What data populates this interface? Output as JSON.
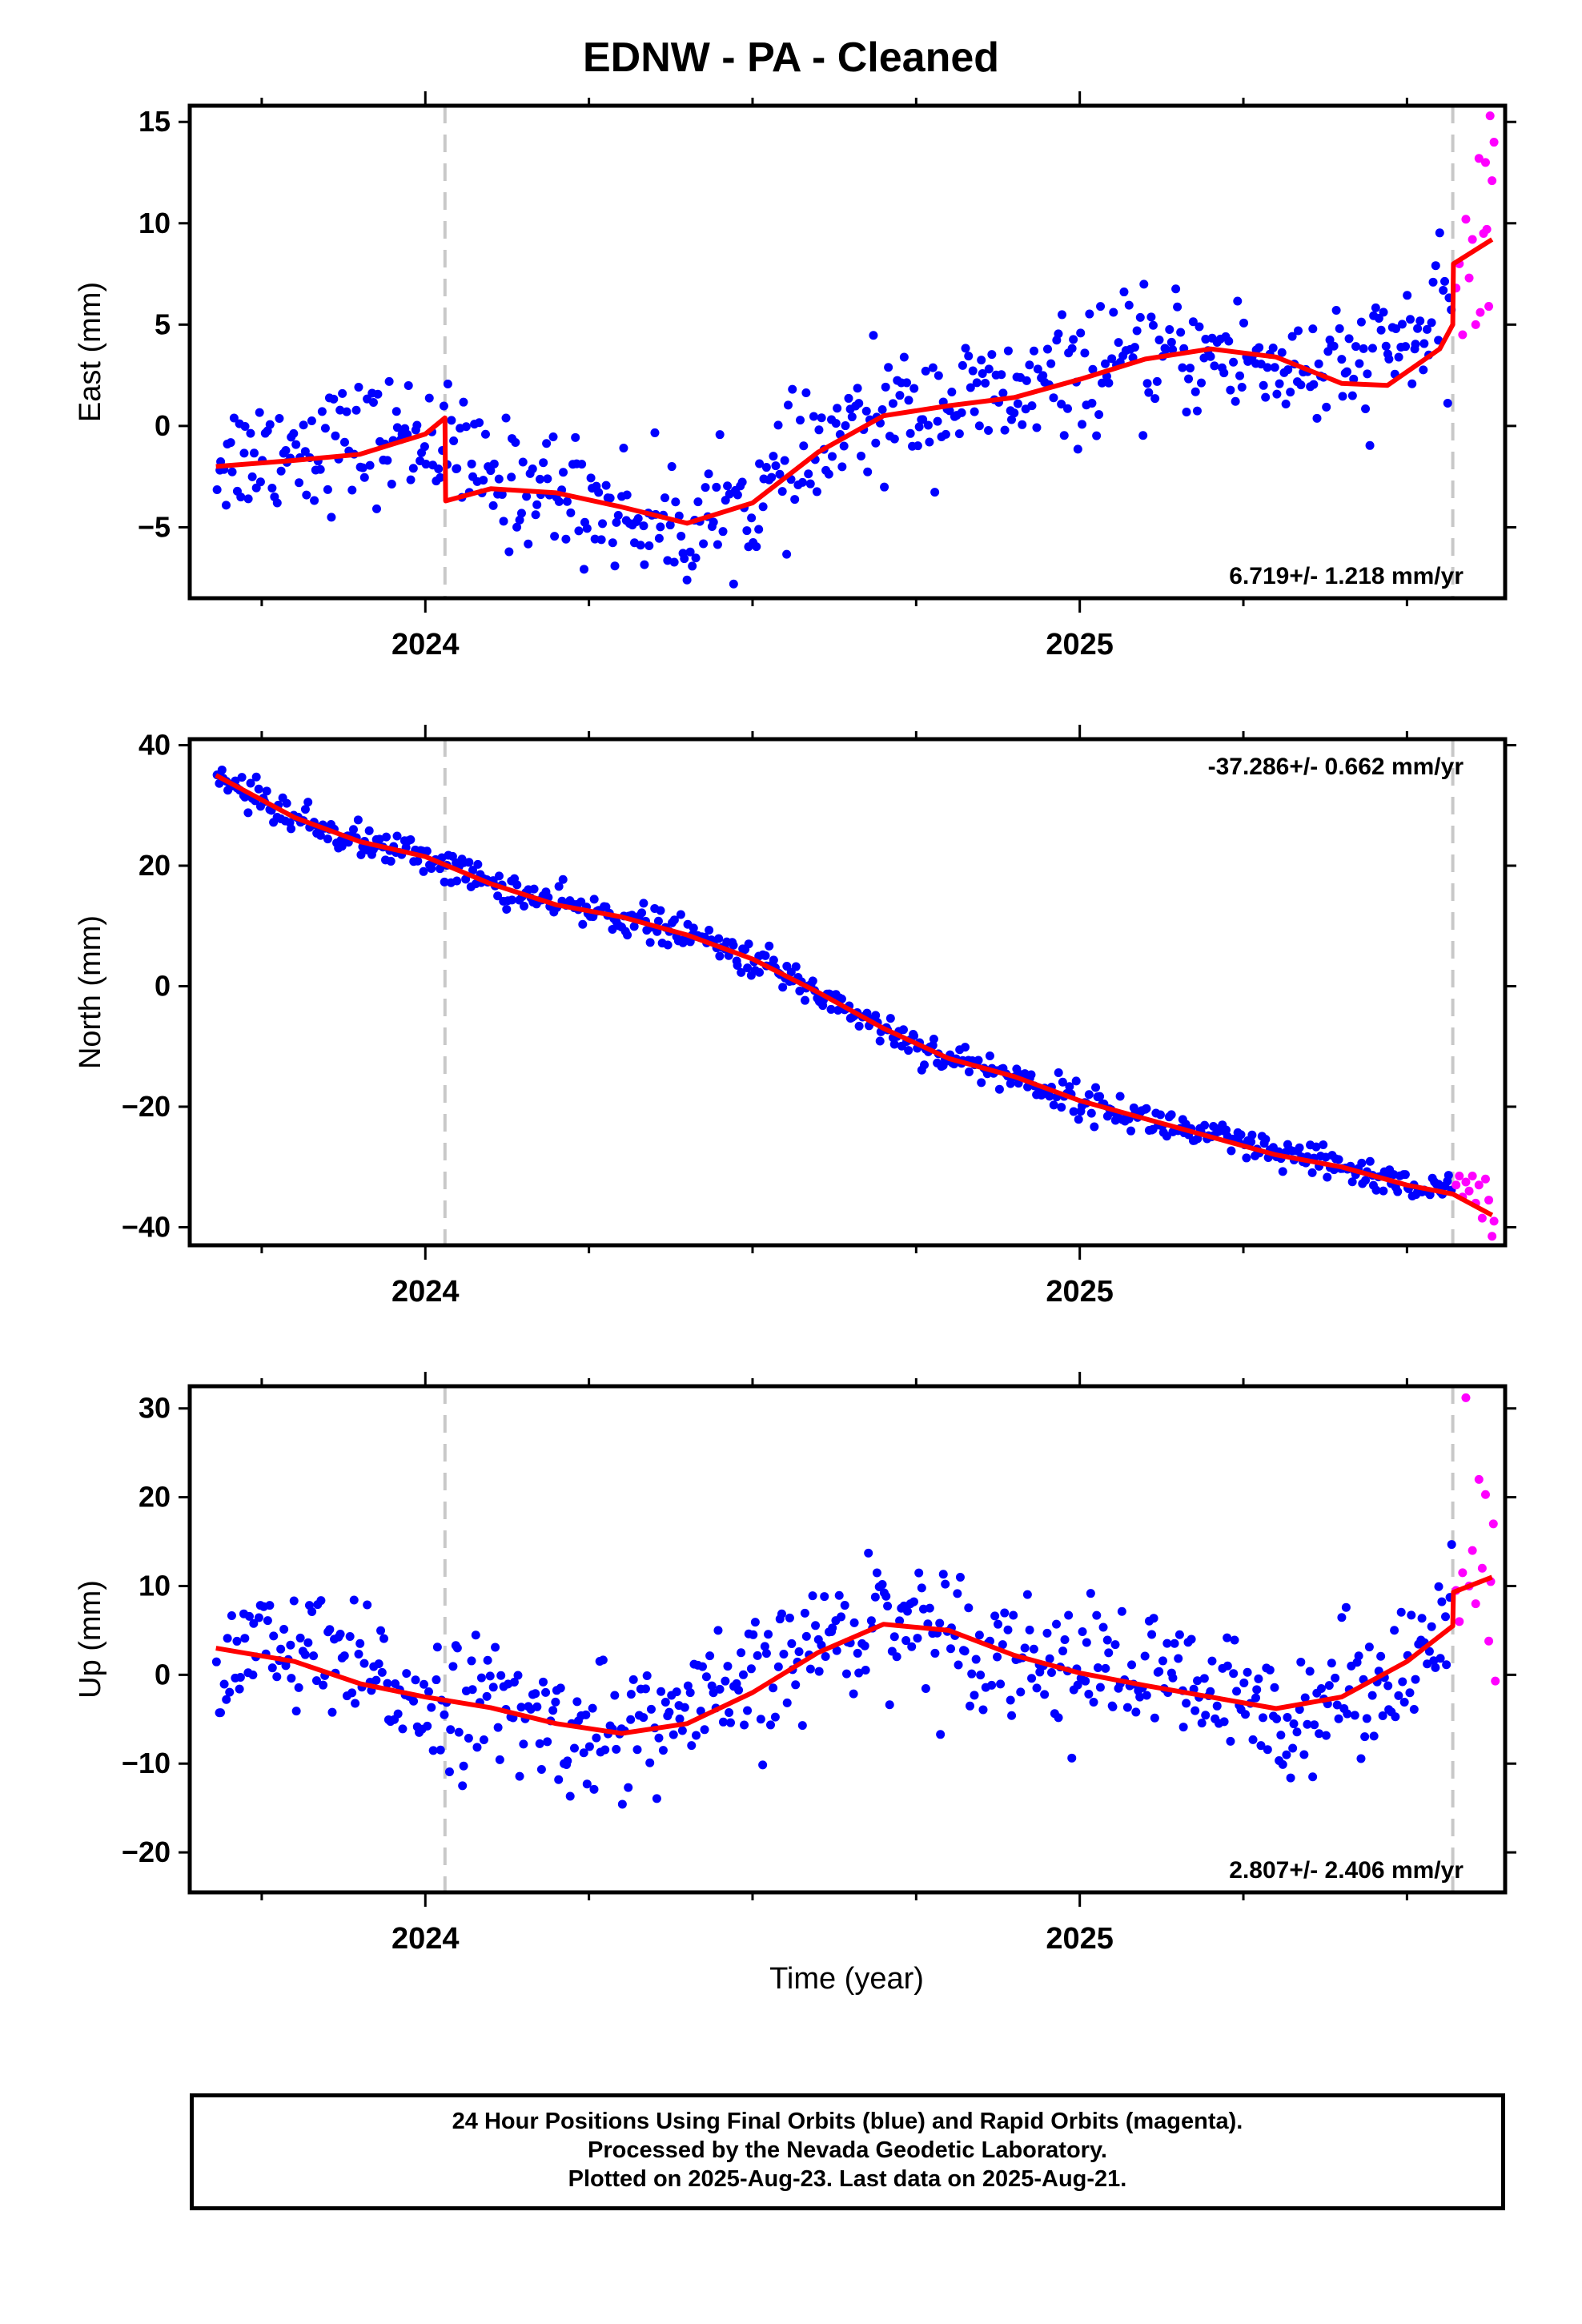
{
  "title": "EDNW  - PA - Cleaned",
  "xlabel": "Time (year)",
  "footer": {
    "line1": "24 Hour Positions Using Final Orbits (blue) and Rapid Orbits (magenta).",
    "line2": "Processed by the Nevada Geodetic Laboratory.",
    "line3": "Plotted on 2025-Aug-23. Last data on 2025-Aug-21."
  },
  "colors": {
    "final": "#0000ff",
    "rapid": "#ff00ff",
    "model": "#ff0000",
    "equipment_change": "#c8c8c8"
  },
  "chart_data": [
    {
      "type": "scatter",
      "ylabel": "East (mm)",
      "rate_label": "6.719+/- 1.218 mm/yr",
      "xlim": [
        2023.64,
        2025.65
      ],
      "ylim": [
        -8.5,
        15.8
      ],
      "yticks": [
        -5,
        0,
        5,
        10,
        15
      ],
      "xticks": [
        2024,
        2025
      ],
      "equipment_changes": [
        2024.03,
        2025.57
      ],
      "model_trend": [
        [
          2023.68,
          -2.0
        ],
        [
          2023.8,
          -1.7
        ],
        [
          2023.9,
          -1.4
        ],
        [
          2024.0,
          -0.4
        ],
        [
          2024.03,
          0.4
        ],
        [
          2024.031,
          -3.7
        ],
        [
          2024.1,
          -3.1
        ],
        [
          2024.2,
          -3.3
        ],
        [
          2024.3,
          -4.0
        ],
        [
          2024.4,
          -4.8
        ],
        [
          2024.5,
          -3.8
        ],
        [
          2024.6,
          -1.3
        ],
        [
          2024.7,
          0.5
        ],
        [
          2024.8,
          1.0
        ],
        [
          2024.9,
          1.4
        ],
        [
          2025.0,
          2.3
        ],
        [
          2025.1,
          3.3
        ],
        [
          2025.2,
          3.8
        ],
        [
          2025.3,
          3.4
        ],
        [
          2025.4,
          2.1
        ],
        [
          2025.47,
          2.0
        ],
        [
          2025.55,
          3.8
        ],
        [
          2025.57,
          5.0
        ],
        [
          2025.571,
          8.0
        ],
        [
          2025.63,
          9.2
        ]
      ],
      "final_anchor": [
        [
          2023.68,
          -1.6
        ],
        [
          2023.8,
          -1.0
        ],
        [
          2023.9,
          -0.8
        ],
        [
          2024.0,
          -0.4
        ],
        [
          2024.03,
          -1.0
        ],
        [
          2024.1,
          -2.8
        ],
        [
          2024.2,
          -3.1
        ],
        [
          2024.3,
          -4.3
        ],
        [
          2024.4,
          -5.0
        ],
        [
          2024.5,
          -3.8
        ],
        [
          2024.6,
          -1.3
        ],
        [
          2024.7,
          0.6
        ],
        [
          2024.8,
          1.2
        ],
        [
          2024.9,
          1.4
        ],
        [
          2025.0,
          2.5
        ],
        [
          2025.1,
          3.4
        ],
        [
          2025.2,
          3.5
        ],
        [
          2025.3,
          3.0
        ],
        [
          2025.4,
          2.5
        ],
        [
          2025.47,
          3.8
        ],
        [
          2025.57,
          5.2
        ]
      ],
      "final_scatter": 1.5,
      "final_samples": 560,
      "rapid_points": [
        [
          2025.575,
          6.8
        ],
        [
          2025.58,
          8.0
        ],
        [
          2025.585,
          4.5
        ],
        [
          2025.59,
          10.2
        ],
        [
          2025.595,
          7.3
        ],
        [
          2025.6,
          9.2
        ],
        [
          2025.605,
          5.0
        ],
        [
          2025.61,
          13.2
        ],
        [
          2025.612,
          5.6
        ],
        [
          2025.617,
          9.5
        ],
        [
          2025.62,
          13.0
        ],
        [
          2025.622,
          9.7
        ],
        [
          2025.625,
          5.9
        ],
        [
          2025.627,
          15.3
        ],
        [
          2025.63,
          12.1
        ],
        [
          2025.633,
          14.0
        ]
      ]
    },
    {
      "type": "scatter",
      "ylabel": "North (mm)",
      "rate_label": "-37.286+/- 0.662 mm/yr",
      "xlim": [
        2023.64,
        2025.65
      ],
      "ylim": [
        -43,
        41
      ],
      "yticks": [
        -40,
        -20,
        0,
        20,
        40
      ],
      "xticks": [
        2024,
        2025
      ],
      "equipment_changes": [
        2024.03,
        2025.57
      ],
      "model_trend": [
        [
          2023.68,
          35
        ],
        [
          2023.8,
          28
        ],
        [
          2023.9,
          24
        ],
        [
          2024.0,
          21.5
        ],
        [
          2024.1,
          17
        ],
        [
          2024.2,
          13.5
        ],
        [
          2024.3,
          11.5
        ],
        [
          2024.4,
          8.5
        ],
        [
          2024.5,
          4.5
        ],
        [
          2024.6,
          -1
        ],
        [
          2024.7,
          -7
        ],
        [
          2024.8,
          -12
        ],
        [
          2024.9,
          -15
        ],
        [
          2025.0,
          -19
        ],
        [
          2025.1,
          -22
        ],
        [
          2025.2,
          -25
        ],
        [
          2025.3,
          -28
        ],
        [
          2025.4,
          -30
        ],
        [
          2025.5,
          -33
        ],
        [
          2025.57,
          -34.5
        ],
        [
          2025.63,
          -38
        ]
      ],
      "final_anchor": [
        [
          2023.68,
          35
        ],
        [
          2023.8,
          28
        ],
        [
          2023.9,
          24
        ],
        [
          2024.0,
          21.5
        ],
        [
          2024.1,
          17
        ],
        [
          2024.2,
          13.5
        ],
        [
          2024.3,
          11.5
        ],
        [
          2024.4,
          8.5
        ],
        [
          2024.5,
          4.5
        ],
        [
          2024.6,
          -1
        ],
        [
          2024.7,
          -7
        ],
        [
          2024.8,
          -12
        ],
        [
          2024.9,
          -15
        ],
        [
          2025.0,
          -19
        ],
        [
          2025.1,
          -22
        ],
        [
          2025.2,
          -25
        ],
        [
          2025.3,
          -28
        ],
        [
          2025.4,
          -30
        ],
        [
          2025.5,
          -33
        ],
        [
          2025.57,
          -34.5
        ]
      ],
      "final_scatter": 1.4,
      "final_samples": 560,
      "rapid_points": [
        [
          2025.575,
          -33
        ],
        [
          2025.58,
          -31.5
        ],
        [
          2025.585,
          -35
        ],
        [
          2025.59,
          -32.5
        ],
        [
          2025.595,
          -34
        ],
        [
          2025.6,
          -31.5
        ],
        [
          2025.605,
          -36
        ],
        [
          2025.61,
          -33
        ],
        [
          2025.615,
          -38.5
        ],
        [
          2025.62,
          -32
        ],
        [
          2025.625,
          -35.5
        ],
        [
          2025.63,
          -41.5
        ],
        [
          2025.633,
          -39
        ]
      ]
    },
    {
      "type": "scatter",
      "ylabel": "Up (mm)",
      "rate_label": "2.807+/- 2.406 mm/yr",
      "xlim": [
        2023.64,
        2025.65
      ],
      "ylim": [
        -24.5,
        32.5
      ],
      "yticks": [
        -20,
        -10,
        0,
        10,
        20,
        30
      ],
      "xticks": [
        2024,
        2025
      ],
      "equipment_changes": [
        2024.03,
        2025.57
      ],
      "model_trend": [
        [
          2023.68,
          3
        ],
        [
          2023.8,
          1.5
        ],
        [
          2023.9,
          -1.0
        ],
        [
          2024.0,
          -2.5
        ],
        [
          2024.1,
          -3.7
        ],
        [
          2024.2,
          -5.5
        ],
        [
          2024.3,
          -6.6
        ],
        [
          2024.4,
          -5.5
        ],
        [
          2024.5,
          -2.0
        ],
        [
          2024.6,
          2.5
        ],
        [
          2024.7,
          5.7
        ],
        [
          2024.8,
          5.0
        ],
        [
          2024.9,
          2.2
        ],
        [
          2025.0,
          0.2
        ],
        [
          2025.1,
          -1.2
        ],
        [
          2025.2,
          -2.5
        ],
        [
          2025.3,
          -3.8
        ],
        [
          2025.4,
          -2.5
        ],
        [
          2025.5,
          1.5
        ],
        [
          2025.57,
          5.5
        ],
        [
          2025.571,
          9.3
        ],
        [
          2025.63,
          11
        ]
      ],
      "final_anchor": [
        [
          2023.68,
          3
        ],
        [
          2023.8,
          2.5
        ],
        [
          2023.9,
          0.0
        ],
        [
          2024.0,
          -2.5
        ],
        [
          2024.1,
          -3.5
        ],
        [
          2024.2,
          -6.0
        ],
        [
          2024.3,
          -6.3
        ],
        [
          2024.4,
          -4.5
        ],
        [
          2024.5,
          -1.5
        ],
        [
          2024.6,
          3.5
        ],
        [
          2024.7,
          7.0
        ],
        [
          2024.8,
          5.0
        ],
        [
          2024.9,
          2.5
        ],
        [
          2025.0,
          1.0
        ],
        [
          2025.1,
          0.0
        ],
        [
          2025.2,
          -2.5
        ],
        [
          2025.3,
          -4.5
        ],
        [
          2025.4,
          -2.0
        ],
        [
          2025.5,
          1.5
        ],
        [
          2025.57,
          5.0
        ]
      ],
      "final_scatter": 3.6,
      "final_samples": 560,
      "rapid_points": [
        [
          2025.575,
          9.5
        ],
        [
          2025.58,
          6.0
        ],
        [
          2025.585,
          11.5
        ],
        [
          2025.59,
          31.2
        ],
        [
          2025.595,
          10.0
        ],
        [
          2025.6,
          14.0
        ],
        [
          2025.605,
          8.0
        ],
        [
          2025.61,
          22.0
        ],
        [
          2025.615,
          12.0
        ],
        [
          2025.62,
          20.3
        ],
        [
          2025.625,
          3.8
        ],
        [
          2025.628,
          10.5
        ],
        [
          2025.632,
          17.0
        ],
        [
          2025.635,
          -0.7
        ]
      ]
    }
  ]
}
